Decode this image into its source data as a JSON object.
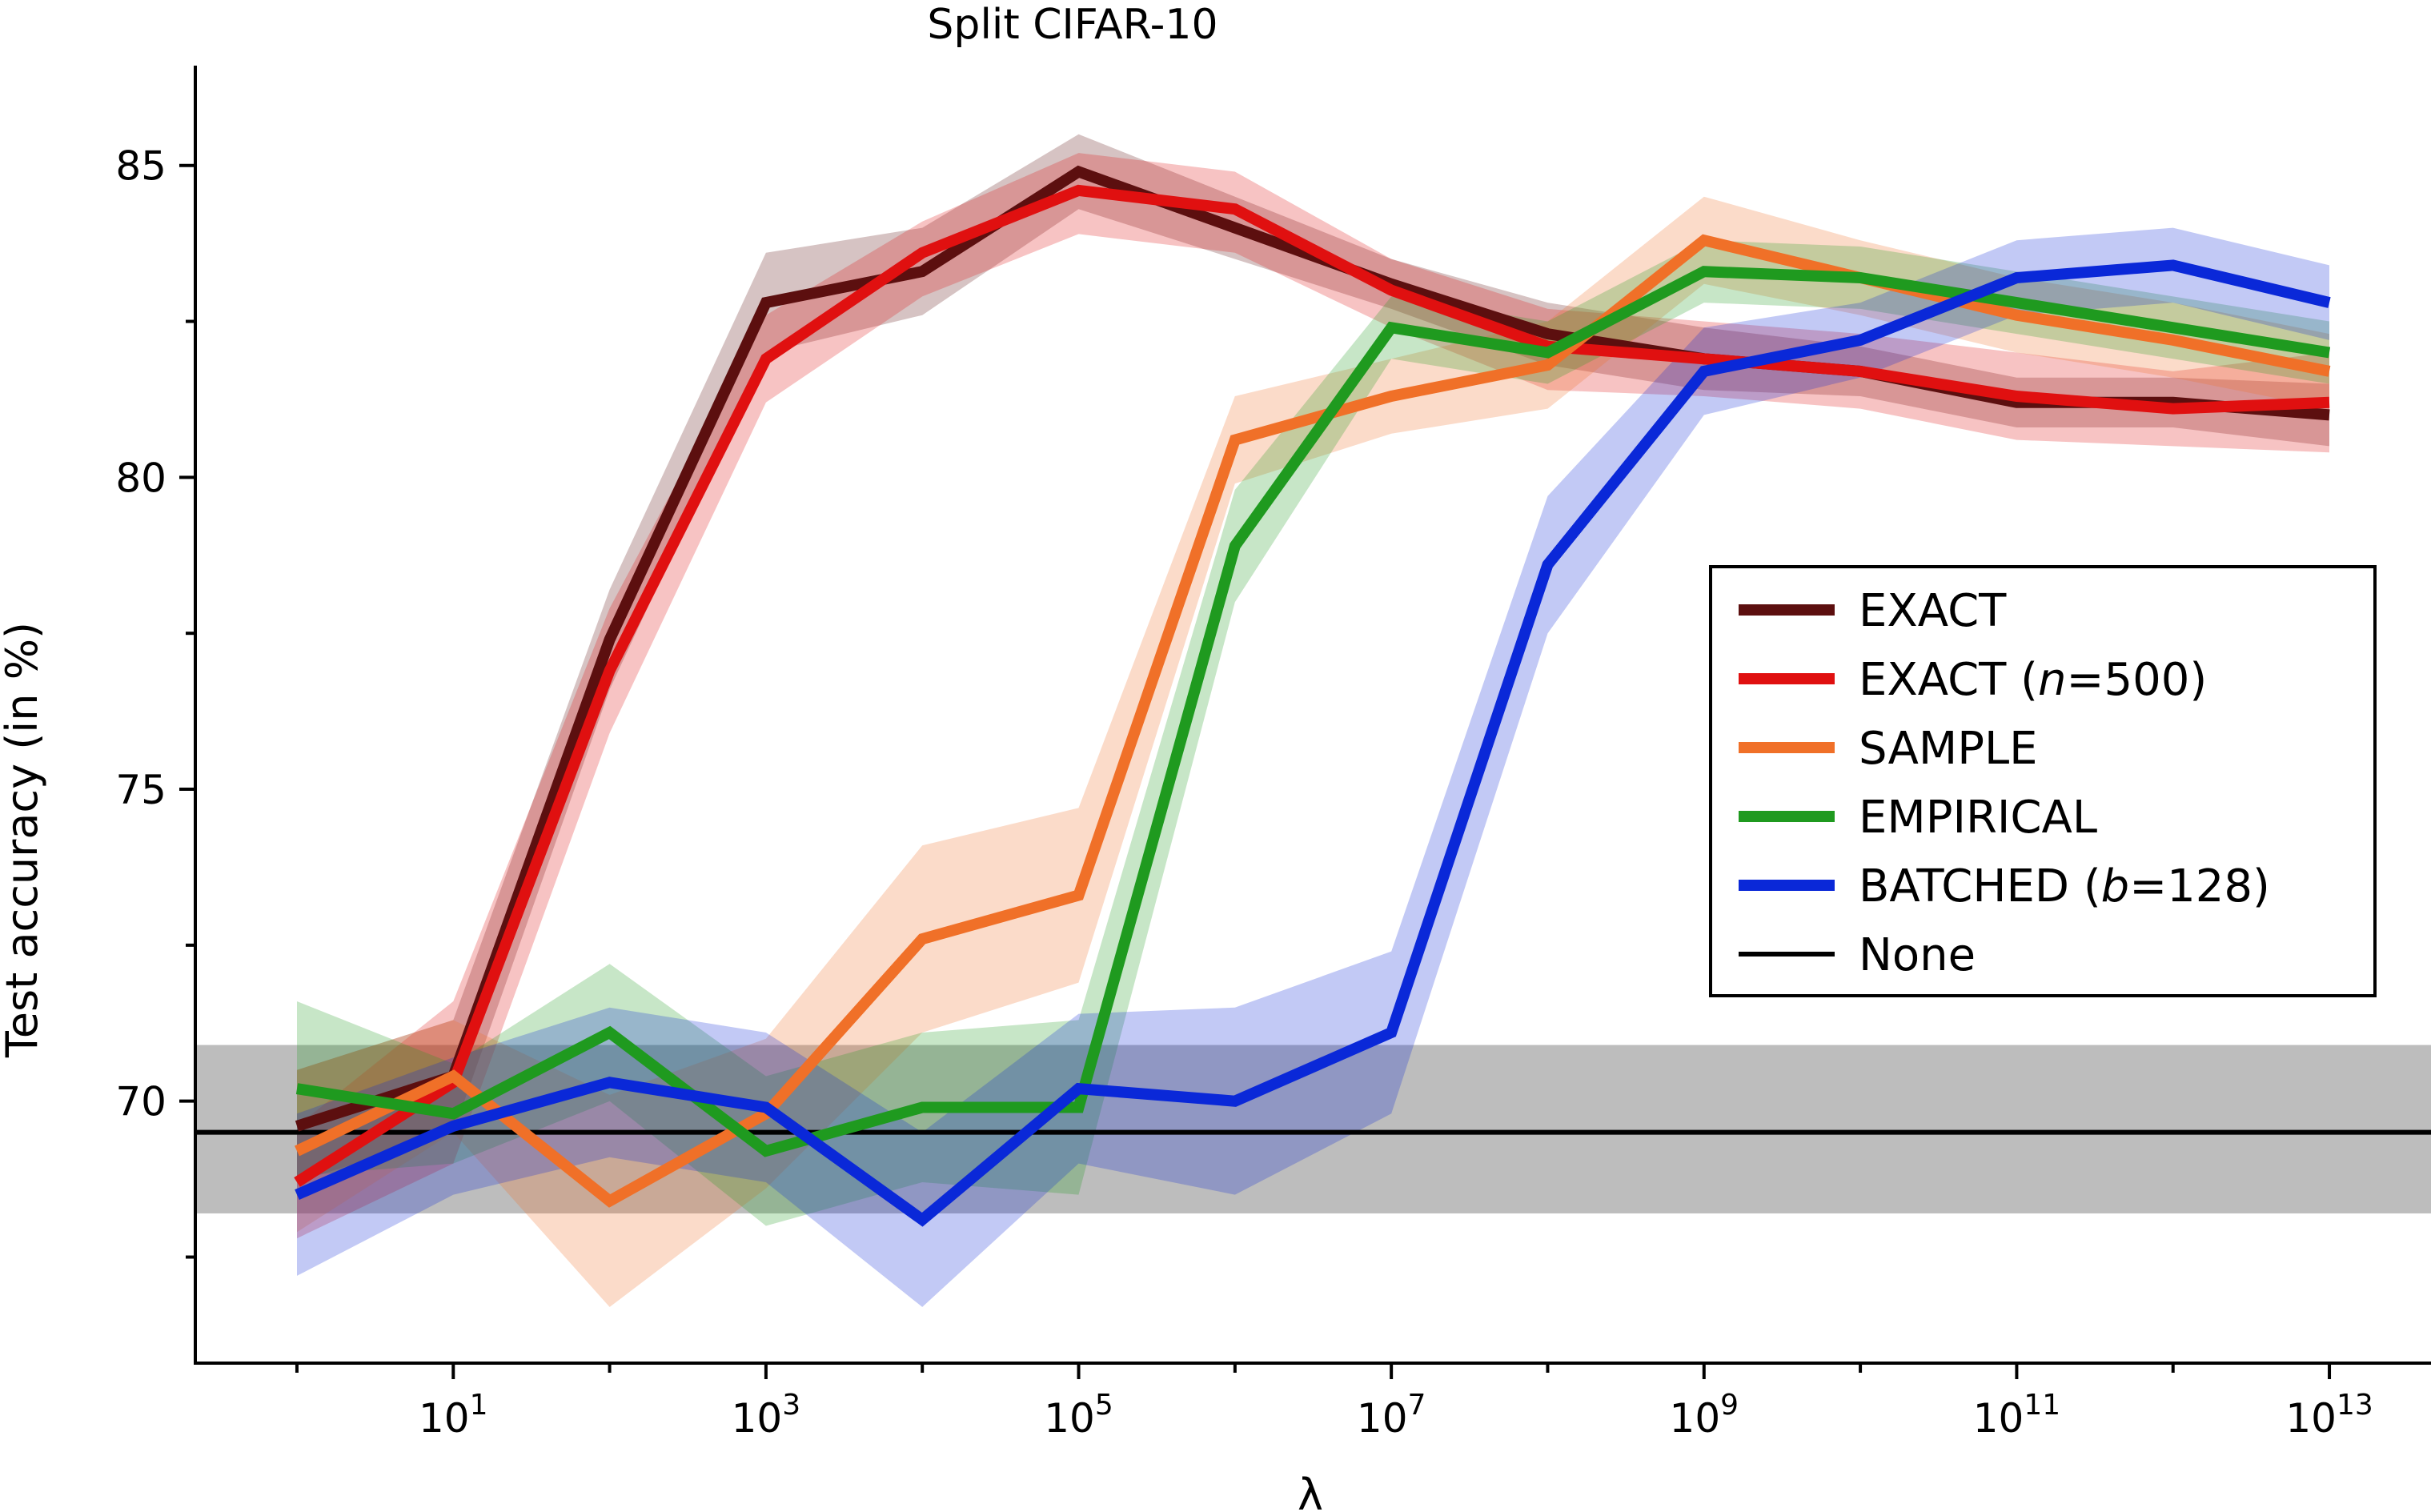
{
  "chart_data": {
    "type": "line",
    "title": "Split CIFAR-10",
    "xlabel": "λ",
    "ylabel": "Test accuracy (in %)",
    "xscale": "log",
    "x": [
      1,
      10,
      100,
      1000,
      10000,
      100000,
      1000000,
      10000000,
      100000000,
      1000000000,
      10000000000,
      100000000000,
      1000000000000,
      10000000000000
    ],
    "xlim_log10": [
      -0.65,
      13.65
    ],
    "ylim": [
      65.8,
      86.6
    ],
    "xticks": [
      {
        "exp": 1,
        "label": "10",
        "sup": "1"
      },
      {
        "exp": 3,
        "label": "10",
        "sup": "3"
      },
      {
        "exp": 5,
        "label": "10",
        "sup": "5"
      },
      {
        "exp": 7,
        "label": "10",
        "sup": "7"
      },
      {
        "exp": 9,
        "label": "10",
        "sup": "9"
      },
      {
        "exp": 11,
        "label": "10",
        "sup": "11"
      },
      {
        "exp": 13,
        "label": "10",
        "sup": "13"
      }
    ],
    "yticks": [
      70,
      75,
      80,
      85
    ],
    "yminor": [
      67.5,
      72.5,
      77.5,
      82.5
    ],
    "legend_position": "center-right",
    "series": [
      {
        "name": "EXACT",
        "color": "#5c0f0f",
        "values": [
          69.6,
          70.4,
          77.4,
          82.8,
          83.3,
          84.9,
          84.0,
          83.1,
          82.3,
          81.9,
          81.7,
          81.2,
          81.2,
          81.0
        ],
        "lower": [
          68.7,
          69.5,
          76.6,
          82.0,
          82.6,
          84.3,
          83.5,
          82.7,
          81.8,
          81.4,
          81.3,
          80.8,
          80.8,
          80.5
        ],
        "upper": [
          70.5,
          71.3,
          78.2,
          83.6,
          84.0,
          85.5,
          84.5,
          83.5,
          82.8,
          82.4,
          82.1,
          81.6,
          81.6,
          81.5
        ]
      },
      {
        "name": "EXACT (n=500)",
        "name_parts": [
          "EXACT (",
          "n",
          "=500)"
        ],
        "color": "#e01010",
        "values": [
          68.7,
          70.3,
          76.9,
          81.9,
          83.6,
          84.6,
          84.3,
          83.0,
          82.1,
          81.9,
          81.7,
          81.3,
          81.1,
          81.2
        ],
        "lower": [
          67.8,
          69.0,
          75.9,
          81.2,
          82.9,
          83.9,
          83.6,
          82.4,
          81.4,
          81.3,
          81.1,
          80.6,
          80.5,
          80.4
        ],
        "upper": [
          69.6,
          71.6,
          77.9,
          82.6,
          84.1,
          85.2,
          84.9,
          83.5,
          82.7,
          82.5,
          82.3,
          82.0,
          81.7,
          82.0
        ]
      },
      {
        "name": "SAMPLE",
        "color": "#f07028",
        "values": [
          69.2,
          70.4,
          68.4,
          69.8,
          72.6,
          73.3,
          80.6,
          81.3,
          81.8,
          83.8,
          83.2,
          82.6,
          82.2,
          81.7
        ],
        "lower": [
          67.9,
          69.5,
          66.7,
          68.6,
          71.1,
          71.9,
          79.9,
          80.7,
          81.1,
          83.1,
          82.6,
          82.0,
          81.6,
          81.1
        ],
        "upper": [
          70.5,
          71.3,
          70.1,
          71.0,
          74.1,
          74.7,
          81.3,
          81.9,
          82.5,
          84.5,
          83.8,
          83.2,
          82.8,
          82.3
        ]
      },
      {
        "name": "EMPIRICAL",
        "color": "#1f9a1f",
        "values": [
          70.2,
          69.8,
          71.1,
          69.2,
          69.9,
          69.9,
          78.9,
          82.4,
          82.0,
          83.3,
          83.2,
          82.8,
          82.4,
          82.0
        ],
        "lower": [
          68.8,
          69.0,
          70.0,
          68.0,
          68.7,
          68.5,
          78.0,
          81.9,
          81.5,
          82.8,
          82.7,
          82.3,
          81.9,
          81.5
        ],
        "upper": [
          71.6,
          70.6,
          72.2,
          70.4,
          71.1,
          71.3,
          79.8,
          82.9,
          82.5,
          83.8,
          83.7,
          83.3,
          82.9,
          82.5
        ]
      },
      {
        "name": "BATCHED (b=128)",
        "name_parts": [
          "BATCHED (",
          "b",
          "=128)"
        ],
        "color": "#0a28d8",
        "values": [
          68.5,
          69.6,
          70.3,
          69.9,
          68.1,
          70.2,
          70.0,
          71.1,
          78.6,
          81.7,
          82.2,
          83.2,
          83.4,
          82.8
        ],
        "lower": [
          67.2,
          68.5,
          69.1,
          68.7,
          66.7,
          69.0,
          68.5,
          69.8,
          77.5,
          81.0,
          81.6,
          82.6,
          82.8,
          82.2
        ],
        "upper": [
          69.8,
          70.7,
          71.5,
          71.1,
          69.5,
          71.4,
          71.5,
          72.4,
          79.7,
          82.4,
          82.8,
          83.8,
          84.0,
          83.4
        ]
      },
      {
        "name": "None",
        "color": "#000000",
        "baseline": 69.5,
        "band": [
          68.2,
          70.9
        ]
      }
    ]
  }
}
